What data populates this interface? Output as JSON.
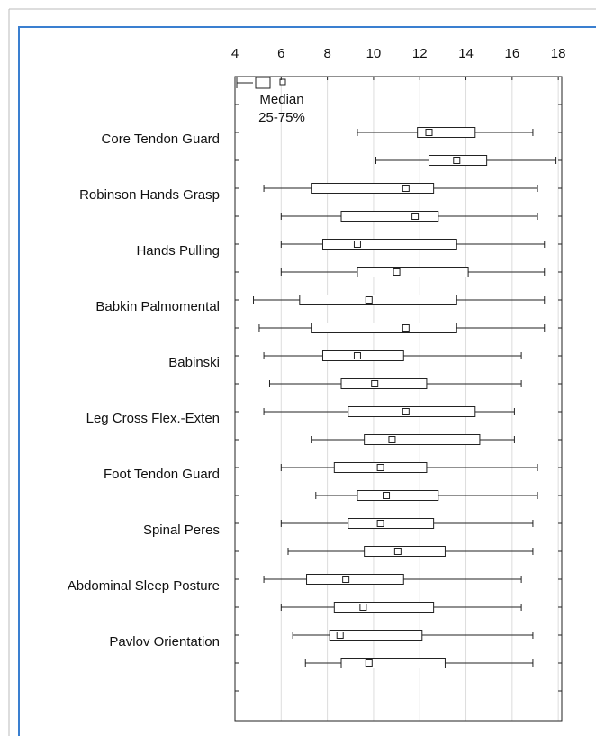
{
  "chart_data": {
    "type": "boxplot",
    "orientation": "horizontal",
    "categories": [
      "Core Tendon Guard",
      "Robinson Hands Grasp",
      "Hands Pulling",
      "Babkin Palmomental",
      "Babinski",
      "Leg Cross Flex.-Exten",
      "Foot Tendon Guard",
      "Spinal Peres",
      "Abdominal Sleep Posture",
      "Pavlov Orientation"
    ],
    "legend": {
      "median": "Median",
      "box": "25-75%"
    },
    "boxes": [
      {
        "min": 9.3,
        "q1": 11.9,
        "median": 12.4,
        "q3": 14.4,
        "max": 16.9
      },
      {
        "min": 10.1,
        "q1": 12.4,
        "median": 13.6,
        "q3": 14.9,
        "max": 17.9
      },
      {
        "min": 5.25,
        "q1": 7.3,
        "median": 11.4,
        "q3": 12.6,
        "max": 17.1
      },
      {
        "min": 6.0,
        "q1": 8.6,
        "median": 11.8,
        "q3": 12.8,
        "max": 17.1
      },
      {
        "min": 6.0,
        "q1": 7.8,
        "median": 9.3,
        "q3": 13.6,
        "max": 17.4
      },
      {
        "min": 6.0,
        "q1": 9.3,
        "median": 11.0,
        "q3": 14.1,
        "max": 17.4
      },
      {
        "min": 4.8,
        "q1": 6.8,
        "median": 9.8,
        "q3": 13.6,
        "max": 17.4
      },
      {
        "min": 5.05,
        "q1": 7.3,
        "median": 11.4,
        "q3": 13.6,
        "max": 17.4
      },
      {
        "min": 5.25,
        "q1": 7.8,
        "median": 9.3,
        "q3": 11.3,
        "max": 16.4
      },
      {
        "min": 5.5,
        "q1": 8.6,
        "median": 10.05,
        "q3": 12.3,
        "max": 16.4
      },
      {
        "min": 5.25,
        "q1": 8.9,
        "median": 11.4,
        "q3": 14.4,
        "max": 16.1
      },
      {
        "min": 7.3,
        "q1": 9.6,
        "median": 10.8,
        "q3": 14.6,
        "max": 16.1
      },
      {
        "min": 6.0,
        "q1": 8.3,
        "median": 10.3,
        "q3": 12.3,
        "max": 17.1
      },
      {
        "min": 7.5,
        "q1": 9.3,
        "median": 10.55,
        "q3": 12.8,
        "max": 17.1
      },
      {
        "min": 6.0,
        "q1": 8.9,
        "median": 10.3,
        "q3": 12.6,
        "max": 16.9
      },
      {
        "min": 6.3,
        "q1": 9.6,
        "median": 11.05,
        "q3": 13.1,
        "max": 16.9
      },
      {
        "min": 5.25,
        "q1": 7.1,
        "median": 8.8,
        "q3": 11.3,
        "max": 16.4
      },
      {
        "min": 6.0,
        "q1": 8.3,
        "median": 9.55,
        "q3": 12.6,
        "max": 16.4
      },
      {
        "min": 6.5,
        "q1": 8.1,
        "median": 8.55,
        "q3": 12.1,
        "max": 16.9
      },
      {
        "min": 7.05,
        "q1": 8.6,
        "median": 9.8,
        "q3": 13.1,
        "max": 16.9
      }
    ],
    "xlim": [
      4,
      18.15
    ],
    "xticks": [
      4,
      6,
      8,
      10,
      12,
      14,
      16,
      18
    ],
    "grid": true,
    "box_color": "#ffffff",
    "line_color": "#222222"
  }
}
